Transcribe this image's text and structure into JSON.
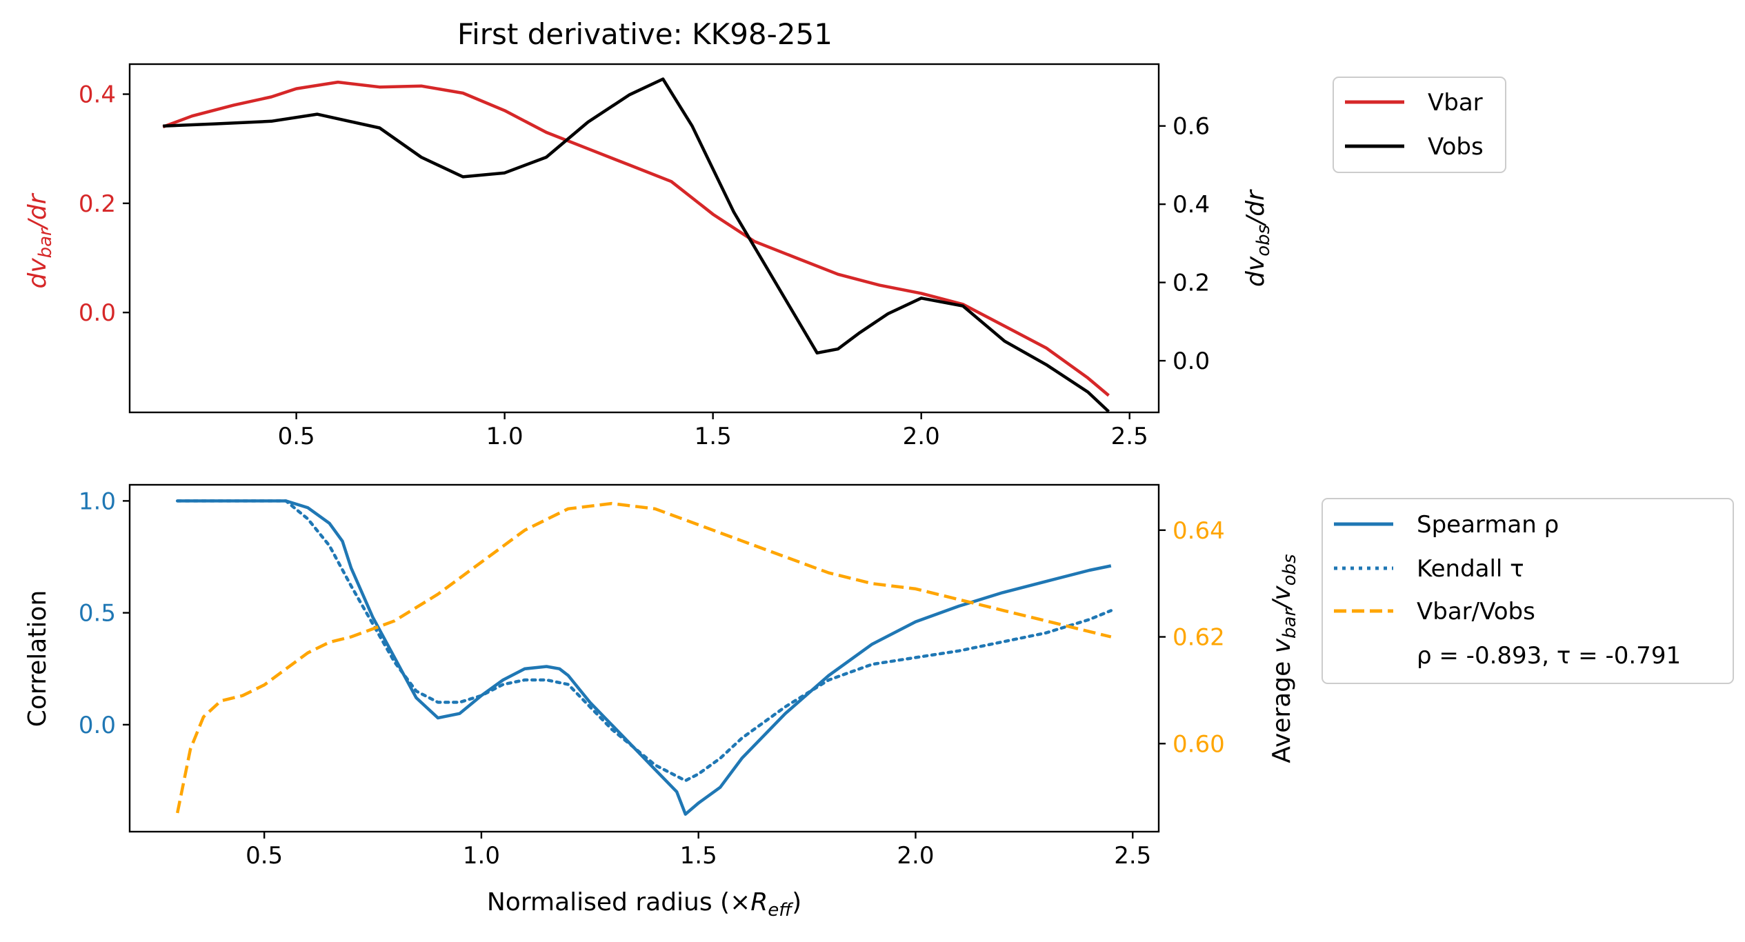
{
  "chart_data": [
    {
      "type": "line",
      "title": "First derivative: KK98-251",
      "xlabel": "",
      "ylabel_left": "dv_bar/dr",
      "ylabel_right": "dv_obs/dr",
      "left_color": "#d62728",
      "right_color": "#000000",
      "xlim": [
        0.1,
        2.57
      ],
      "ylim_left": [
        -0.183,
        0.455
      ],
      "ylim_right": [
        -0.132,
        0.758
      ],
      "x_ticks": [
        0.5,
        1.0,
        1.5,
        2.0,
        2.5
      ],
      "x_tick_labels": [
        "0.5",
        "1.0",
        "1.5",
        "2.0",
        "2.5"
      ],
      "y_left_ticks": [
        0.0,
        0.2,
        0.4
      ],
      "y_left_tick_labels": [
        "0.0",
        "0.2",
        "0.4"
      ],
      "y_right_ticks": [
        0.0,
        0.2,
        0.4,
        0.6
      ],
      "y_right_tick_labels": [
        "0.0",
        "0.2",
        "0.4",
        "0.6"
      ],
      "legend_position": "outside-top-right",
      "series": [
        {
          "name": "Vbar",
          "axis": "left",
          "color": "#d62728",
          "x": [
            0.18,
            0.25,
            0.35,
            0.44,
            0.5,
            0.6,
            0.7,
            0.8,
            0.9,
            1.0,
            1.1,
            1.2,
            1.3,
            1.4,
            1.5,
            1.6,
            1.7,
            1.8,
            1.9,
            2.0,
            2.1,
            2.2,
            2.3,
            2.4,
            2.45
          ],
          "y": [
            0.34,
            0.36,
            0.38,
            0.395,
            0.41,
            0.422,
            0.413,
            0.415,
            0.402,
            0.37,
            0.33,
            0.3,
            0.27,
            0.24,
            0.18,
            0.13,
            0.1,
            0.07,
            0.05,
            0.035,
            0.015,
            -0.025,
            -0.065,
            -0.12,
            -0.152
          ]
        },
        {
          "name": "Vobs",
          "axis": "right",
          "color": "#000000",
          "x": [
            0.18,
            0.3,
            0.44,
            0.55,
            0.7,
            0.8,
            0.9,
            1.0,
            1.1,
            1.2,
            1.3,
            1.38,
            1.45,
            1.55,
            1.65,
            1.75,
            1.8,
            1.85,
            1.92,
            2.0,
            2.1,
            2.2,
            2.3,
            2.4,
            2.45
          ],
          "y": [
            0.6,
            0.605,
            0.612,
            0.63,
            0.595,
            0.52,
            0.47,
            0.48,
            0.52,
            0.61,
            0.68,
            0.72,
            0.6,
            0.38,
            0.2,
            0.02,
            0.03,
            0.07,
            0.12,
            0.16,
            0.14,
            0.05,
            -0.01,
            -0.08,
            -0.13
          ]
        }
      ]
    },
    {
      "type": "line",
      "title": "",
      "xlabel": "Normalised radius (×R_eff)",
      "ylabel_left": "Correlation",
      "ylabel_right": "Average v_bar/v_obs",
      "left_color": "#1f77b4",
      "right_color": "#ffa500",
      "xlim": [
        0.19,
        2.56
      ],
      "ylim_left": [
        -0.478,
        1.072
      ],
      "ylim_right": [
        0.5835,
        0.6485
      ],
      "x_ticks": [
        0.5,
        1.0,
        1.5,
        2.0,
        2.5
      ],
      "x_tick_labels": [
        "0.5",
        "1.0",
        "1.5",
        "2.0",
        "2.5"
      ],
      "y_left_ticks": [
        0.0,
        0.5,
        1.0
      ],
      "y_left_tick_labels": [
        "0.0",
        "0.5",
        "1.0"
      ],
      "y_right_ticks": [
        0.6,
        0.62,
        0.64
      ],
      "y_right_tick_labels": [
        "0.60",
        "0.62",
        "0.64"
      ],
      "legend_position": "outside-top-right",
      "annotation": "ρ = -0.893, τ = -0.791",
      "series": [
        {
          "name": "Spearman ρ",
          "axis": "left",
          "color": "#1f77b4",
          "style": "solid",
          "x": [
            0.3,
            0.4,
            0.5,
            0.55,
            0.6,
            0.65,
            0.68,
            0.7,
            0.75,
            0.8,
            0.85,
            0.9,
            0.95,
            1.0,
            1.05,
            1.1,
            1.15,
            1.18,
            1.2,
            1.25,
            1.3,
            1.35,
            1.4,
            1.45,
            1.47,
            1.5,
            1.55,
            1.6,
            1.7,
            1.8,
            1.9,
            2.0,
            2.1,
            2.2,
            2.3,
            2.4,
            2.45
          ],
          "y": [
            1.0,
            1.0,
            1.0,
            1.0,
            0.97,
            0.9,
            0.82,
            0.7,
            0.48,
            0.3,
            0.12,
            0.03,
            0.05,
            0.13,
            0.2,
            0.25,
            0.26,
            0.25,
            0.22,
            0.1,
            0.0,
            -0.1,
            -0.2,
            -0.3,
            -0.4,
            -0.35,
            -0.28,
            -0.15,
            0.05,
            0.22,
            0.36,
            0.46,
            0.53,
            0.59,
            0.64,
            0.69,
            0.71
          ]
        },
        {
          "name": "Kendall τ",
          "axis": "left",
          "color": "#1f77b4",
          "style": "dotted",
          "x": [
            0.3,
            0.4,
            0.5,
            0.55,
            0.6,
            0.65,
            0.7,
            0.75,
            0.8,
            0.85,
            0.9,
            0.95,
            1.0,
            1.05,
            1.1,
            1.15,
            1.2,
            1.25,
            1.3,
            1.35,
            1.4,
            1.47,
            1.5,
            1.55,
            1.6,
            1.7,
            1.8,
            1.9,
            2.0,
            2.1,
            2.2,
            2.3,
            2.4,
            2.45
          ],
          "y": [
            1.0,
            1.0,
            1.0,
            1.0,
            0.92,
            0.8,
            0.62,
            0.45,
            0.28,
            0.15,
            0.1,
            0.1,
            0.13,
            0.18,
            0.2,
            0.2,
            0.18,
            0.08,
            -0.02,
            -0.1,
            -0.18,
            -0.25,
            -0.22,
            -0.15,
            -0.06,
            0.08,
            0.2,
            0.27,
            0.3,
            0.33,
            0.37,
            0.41,
            0.47,
            0.51
          ]
        },
        {
          "name": "Vbar/Vobs",
          "axis": "right",
          "color": "#ffa500",
          "style": "dashed",
          "x": [
            0.3,
            0.33,
            0.36,
            0.4,
            0.45,
            0.5,
            0.55,
            0.6,
            0.65,
            0.7,
            0.8,
            0.9,
            1.0,
            1.1,
            1.2,
            1.3,
            1.4,
            1.5,
            1.6,
            1.7,
            1.8,
            1.9,
            2.0,
            2.1,
            2.2,
            2.3,
            2.4,
            2.45
          ],
          "y": [
            0.587,
            0.599,
            0.605,
            0.608,
            0.609,
            0.611,
            0.614,
            0.617,
            0.619,
            0.62,
            0.623,
            0.628,
            0.634,
            0.64,
            0.644,
            0.645,
            0.644,
            0.641,
            0.638,
            0.635,
            0.632,
            0.63,
            0.629,
            0.627,
            0.625,
            0.623,
            0.621,
            0.62
          ]
        }
      ]
    }
  ]
}
